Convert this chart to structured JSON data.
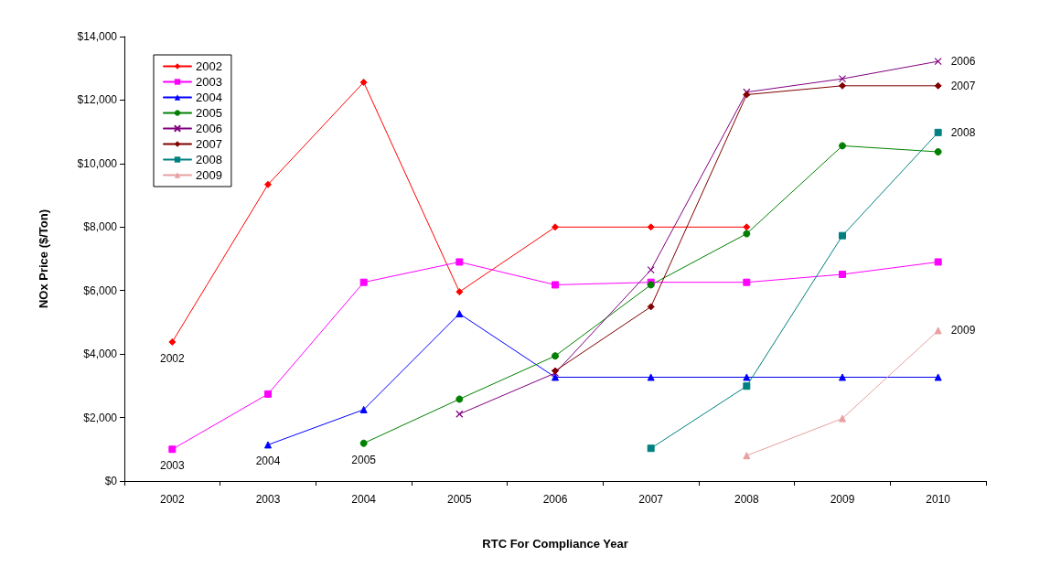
{
  "chart_data": {
    "type": "line",
    "xlabel": "RTC For Compliance Year",
    "ylabel": "NOx Price ($/Ton)",
    "categories": [
      "2002",
      "2003",
      "2004",
      "2005",
      "2006",
      "2007",
      "2008",
      "2009",
      "2010"
    ],
    "ylim": [
      0,
      14000
    ],
    "yticks": [
      {
        "value": 0,
        "label": "$0"
      },
      {
        "value": 2000,
        "label": "$2,000"
      },
      {
        "value": 4000,
        "label": "$4,000"
      },
      {
        "value": 6000,
        "label": "$6,000"
      },
      {
        "value": 8000,
        "label": "$8,000"
      },
      {
        "value": 10000,
        "label": "$10,000"
      },
      {
        "value": 12000,
        "label": "$12,000"
      },
      {
        "value": 14000,
        "label": "$14,000"
      }
    ],
    "grid": false,
    "legend": "top left",
    "line_style": "solid",
    "series": [
      {
        "name": "2002",
        "color": "#ff0000",
        "marker": "diamond",
        "values": [
          4380,
          9340,
          12560,
          5960,
          8000,
          8000,
          8000,
          null,
          null
        ]
      },
      {
        "name": "2003",
        "color": "#ff00ff",
        "marker": "square",
        "values": [
          1000,
          2740,
          6260,
          6900,
          6180,
          6260,
          6260,
          6510,
          6900
        ]
      },
      {
        "name": "2004",
        "color": "#0000ff",
        "marker": "triangle",
        "values": [
          null,
          1140,
          2250,
          5270,
          3270,
          3270,
          3270,
          3270,
          3270
        ]
      },
      {
        "name": "2005",
        "color": "#008000",
        "marker": "circle",
        "values": [
          null,
          null,
          1190,
          2580,
          3940,
          6180,
          7790,
          10560,
          10370
        ]
      },
      {
        "name": "2006",
        "color": "#800080",
        "marker": "cross",
        "values": [
          null,
          null,
          null,
          2110,
          3400,
          6650,
          12250,
          12670,
          13220
        ]
      },
      {
        "name": "2007",
        "color": "#800000",
        "marker": "diamond",
        "values": [
          null,
          null,
          null,
          null,
          3470,
          5490,
          12170,
          12450,
          12450
        ]
      },
      {
        "name": "2008",
        "color": "#008080",
        "marker": "square",
        "values": [
          null,
          null,
          null,
          null,
          null,
          1030,
          2990,
          7730,
          10980
        ]
      },
      {
        "name": "2009",
        "color": "#e8a0a0",
        "marker": "triangle",
        "values": [
          null,
          null,
          null,
          null,
          null,
          null,
          800,
          1970,
          4740
        ]
      }
    ],
    "annotations": [
      {
        "text": "2002",
        "x": "2002",
        "y": 4380
      },
      {
        "text": "2003",
        "x": "2002",
        "y": 1000
      },
      {
        "text": "2004",
        "x": "2003",
        "y": 1140
      },
      {
        "text": "2005",
        "x": "2004",
        "y": 1190
      },
      {
        "text": "2006",
        "x": "2010",
        "y": 13220
      },
      {
        "text": "2007",
        "x": "2010",
        "y": 12450
      },
      {
        "text": "2008",
        "x": "2010",
        "y": 10980
      },
      {
        "text": "2009",
        "x": "2010",
        "y": 4740
      }
    ]
  }
}
